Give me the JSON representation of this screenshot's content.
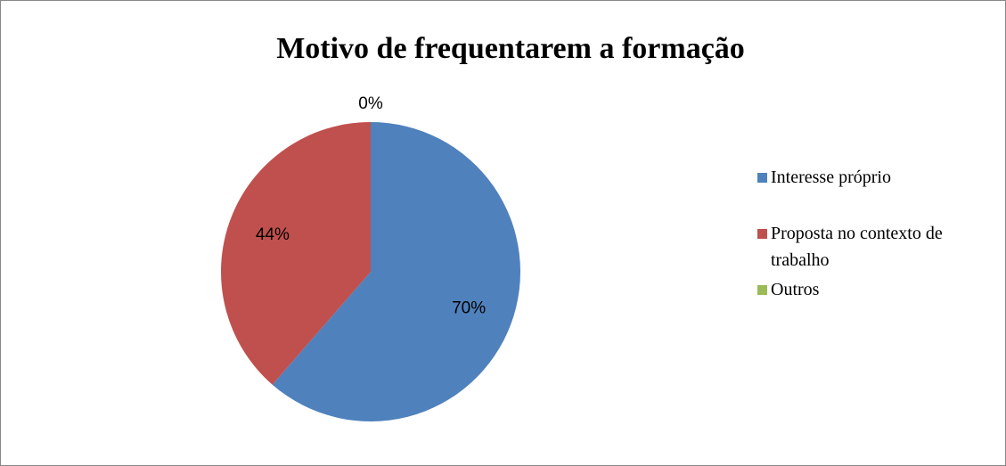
{
  "chart_data": {
    "type": "pie",
    "title": "Motivo de frequentarem a formação",
    "categories": [
      "Interesse próprio",
      "Proposta no contexto de trabalho",
      "Outros"
    ],
    "values": [
      70,
      44,
      0
    ],
    "value_labels": [
      "70%",
      "44%",
      "0%"
    ],
    "colors": [
      "#4f81bd",
      "#c0504d",
      "#9bbb59"
    ],
    "legend": "right"
  }
}
